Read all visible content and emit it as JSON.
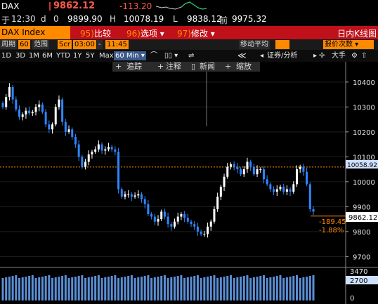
{
  "ticker": {
    "symbol": "DAX",
    "last": "9862.12",
    "change": "-113.20"
  },
  "quote": {
    "prefix": "于",
    "time": "12:30",
    "d_label": "d",
    "open_label": "0",
    "open": "9899.90",
    "high_label": "H",
    "high": "10078.19",
    "low_label": "L",
    "low": "9838.12",
    "prev_label": "前",
    "prev": "9975.32"
  },
  "toolbar": {
    "name": "DAX Index",
    "btn1_num": "95)",
    "btn1": "比较",
    "btn2_num": "96)",
    "btn2": "选项",
    "btn3_num": "97)",
    "btn3": "修改",
    "title": "日内K线图"
  },
  "range_bar": {
    "period_label": "周期",
    "period_value": "60",
    "range_label": "范围",
    "scr": "Scr",
    "start": "03:00",
    "end": "11:45",
    "ma_label": "移动平均",
    "report_label": "报价次数"
  },
  "periods": [
    "1D",
    "3D",
    "1M",
    "6M",
    "YTD",
    "1Y",
    "5Y",
    "Max"
  ],
  "interval": "60 Min",
  "chart_tools": {
    "ratio": "证券/分析",
    "big": "大手"
  },
  "chart_toolbar": {
    "track": "追踪",
    "note": "注释",
    "news": "新闻",
    "zoom": "缩放"
  },
  "colors": {
    "up": "#ffffff",
    "down": "#2e86ff",
    "ref_line": "#ff8a00",
    "accent": "#c0101a"
  },
  "chart_data": {
    "type": "candlestick",
    "y_ticks": [
      10400,
      10300,
      10200,
      10100,
      10000,
      9900,
      9800,
      9700
    ],
    "ylim": [
      9670,
      10470
    ],
    "reference_line": {
      "value": 10058.92,
      "label": "10058.92"
    },
    "last_value": {
      "value": 9862.12,
      "label": "9862.12"
    },
    "change_label": "-189.45",
    "change_pct_label": "-1.88%",
    "closes": [
      10300,
      10340,
      10380,
      10330,
      10290,
      10260,
      10270,
      10285,
      10275,
      10280,
      10300,
      10310,
      10280,
      10230,
      10210,
      10230,
      10300,
      10330,
      10240,
      10200,
      10210,
      10180,
      10150,
      10100,
      10060,
      10080,
      10110,
      10120,
      10130,
      10150,
      10125,
      10130,
      10140,
      10130,
      10120,
      9970,
      9940,
      9950,
      9950,
      9940,
      9945,
      9950,
      9930,
      9910,
      9870,
      9860,
      9840,
      9850,
      9880,
      9860,
      9830,
      9820,
      9840,
      9860,
      9870,
      9855,
      9840,
      9830,
      9820,
      9800,
      9790,
      9790,
      9820,
      9840,
      9890,
      9940,
      9980,
      10020,
      10060,
      10070,
      10060,
      10050,
      10030,
      10050,
      10080,
      10060,
      10030,
      10050,
      10050,
      10010,
      9990,
      9970,
      9960,
      9970,
      9980,
      9960,
      9970,
      9960,
      9990,
      10050,
      10060,
      10040,
      9990,
      9890,
      9880
    ],
    "volume_ticks": [
      "3470",
      "2700",
      "0"
    ],
    "volume_value": "2700"
  }
}
